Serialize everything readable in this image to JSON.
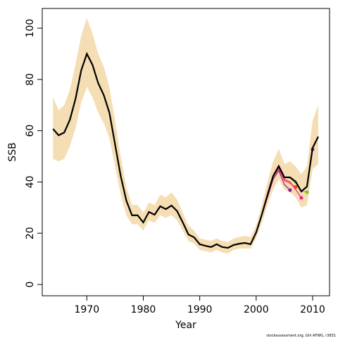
{
  "chart_data": {
    "type": "line",
    "xlabel": "Year",
    "ylabel": "SSB",
    "caption": "stockassessment.org, Ghl AFWG, r3831",
    "x": [
      1964,
      1965,
      1966,
      1967,
      1968,
      1969,
      1970,
      1971,
      1972,
      1973,
      1974,
      1975,
      1976,
      1977,
      1978,
      1979,
      1980,
      1981,
      1982,
      1983,
      1984,
      1985,
      1986,
      1987,
      1988,
      1989,
      1990,
      1991,
      1992,
      1993,
      1994,
      1995,
      1996,
      1997,
      1998,
      1999,
      2000,
      2001,
      2002,
      2003,
      2004,
      2005,
      2006,
      2007,
      2008,
      2009,
      2010,
      2011
    ],
    "band": {
      "color": "#f5deb3",
      "upper": [
        73,
        68,
        70,
        76,
        86,
        97,
        104,
        98,
        90,
        85,
        77,
        64,
        50,
        38,
        31,
        31,
        28,
        32,
        31,
        35,
        34,
        36,
        33,
        28,
        23,
        21,
        18,
        17.5,
        17,
        18,
        17,
        16.5,
        18,
        18.5,
        19,
        18.5,
        23,
        31,
        40,
        48,
        53,
        47,
        48,
        46,
        43,
        46,
        64,
        70
      ],
      "lower": [
        49,
        48,
        49,
        54,
        61,
        71,
        77,
        73,
        67,
        63,
        57,
        46,
        35,
        27,
        23.5,
        23.5,
        21,
        25,
        24,
        27,
        26,
        27,
        25,
        21,
        17,
        16,
        13.5,
        13,
        12.5,
        13.5,
        12.5,
        12,
        13.5,
        14,
        14,
        14,
        18,
        24,
        31,
        37,
        41,
        37,
        36,
        34,
        30,
        31,
        45,
        47
      ]
    },
    "series": [
      {
        "color": "#8b1a8b",
        "end_marker": true,
        "values": [
          null,
          null,
          null,
          null,
          null,
          null,
          null,
          null,
          null,
          null,
          null,
          null,
          null,
          null,
          null,
          null,
          null,
          null,
          null,
          null,
          null,
          null,
          null,
          null,
          null,
          null,
          null,
          null,
          null,
          null,
          null,
          null,
          null,
          null,
          null,
          null,
          20.3,
          27,
          34,
          41,
          44.5,
          39,
          36.8,
          null,
          null,
          null,
          null,
          null
        ]
      },
      {
        "color": "#ff4500",
        "end_marker": true,
        "values": [
          null,
          null,
          null,
          null,
          null,
          null,
          null,
          null,
          null,
          null,
          null,
          null,
          null,
          null,
          null,
          null,
          null,
          null,
          null,
          null,
          null,
          null,
          null,
          null,
          null,
          null,
          null,
          null,
          null,
          null,
          null,
          null,
          null,
          null,
          null,
          null,
          20.3,
          27.1,
          34.5,
          41.8,
          45.3,
          40.5,
          39.5,
          38,
          null,
          null,
          null,
          null
        ]
      },
      {
        "color": "#ff1493",
        "end_marker": true,
        "values": [
          null,
          null,
          null,
          null,
          null,
          null,
          null,
          null,
          null,
          null,
          null,
          null,
          null,
          null,
          null,
          null,
          null,
          null,
          null,
          null,
          null,
          null,
          null,
          null,
          null,
          null,
          null,
          null,
          null,
          null,
          null,
          null,
          null,
          null,
          null,
          null,
          20.3,
          27.2,
          34.9,
          42.3,
          45.5,
          41,
          40,
          37,
          33.8,
          null,
          null,
          null
        ]
      },
      {
        "color": "#7fc31c",
        "end_marker": true,
        "values": [
          null,
          null,
          null,
          null,
          null,
          null,
          null,
          null,
          null,
          null,
          null,
          null,
          null,
          null,
          null,
          null,
          null,
          null,
          null,
          null,
          null,
          null,
          null,
          null,
          null,
          null,
          null,
          null,
          null,
          null,
          null,
          null,
          null,
          null,
          null,
          null,
          20.3,
          27.2,
          34.9,
          42.3,
          46,
          41.8,
          41.5,
          39.5,
          36.5,
          36,
          null,
          null
        ]
      },
      {
        "color": "#7b2fbe",
        "end_marker": true,
        "values": [
          null,
          null,
          null,
          null,
          null,
          null,
          null,
          null,
          null,
          null,
          null,
          null,
          null,
          null,
          null,
          null,
          null,
          null,
          null,
          null,
          null,
          null,
          null,
          null,
          null,
          null,
          null,
          null,
          null,
          null,
          null,
          null,
          null,
          null,
          null,
          null,
          20.3,
          27.2,
          34.9,
          42.3,
          46.2,
          41.8,
          41.8,
          40,
          36.3,
          38,
          52.7,
          null
        ]
      },
      {
        "color": "#000000",
        "end_marker": false,
        "values": [
          60.7,
          58.2,
          59.3,
          64.3,
          72.5,
          83.5,
          90,
          85.7,
          78.6,
          73.9,
          67,
          54.7,
          42.3,
          32.7,
          27,
          27,
          24.2,
          28.3,
          27.2,
          30.5,
          29.4,
          30.8,
          28.6,
          24.2,
          19.5,
          18.4,
          15.7,
          15.1,
          14.6,
          15.7,
          14.6,
          14.3,
          15.4,
          15.9,
          16.2,
          15.7,
          20.3,
          27.2,
          34.9,
          42.3,
          46.2,
          41.8,
          41.8,
          40.1,
          36.3,
          38.2,
          53.3,
          57.7
        ]
      }
    ],
    "xlim": [
      1962.1,
      2013
    ],
    "ylim": [
      -4.4,
      107.7
    ],
    "xticks": [
      1970,
      1980,
      1990,
      2000,
      2010
    ],
    "yticks": [
      0,
      20,
      40,
      60,
      80,
      100
    ]
  }
}
